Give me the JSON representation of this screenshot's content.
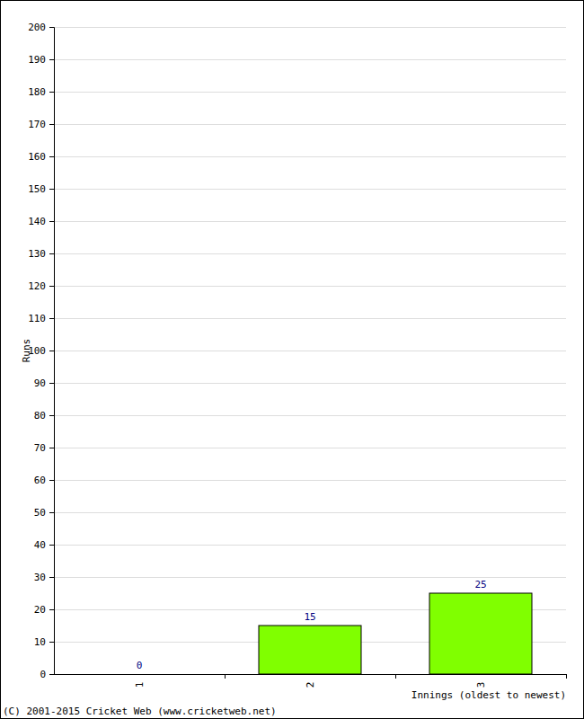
{
  "chart_data": {
    "type": "bar",
    "categories": [
      "1",
      "2",
      "3"
    ],
    "values": [
      0,
      15,
      25
    ],
    "color": "#80ff00",
    "ylim": [
      0,
      200
    ],
    "yticks": [
      0,
      10,
      20,
      30,
      40,
      50,
      60,
      70,
      80,
      90,
      100,
      110,
      120,
      130,
      140,
      150,
      160,
      170,
      180,
      190,
      200
    ],
    "grid": true,
    "data_labels": true,
    "y_label": "Runs",
    "x_label": "Innings (oldest to newest)",
    "annotations": [
      "(C) 2001-2015 Cricket Web (www.cricketweb.net)"
    ]
  }
}
